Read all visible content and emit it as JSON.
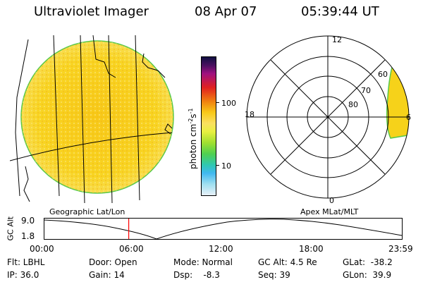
{
  "header": {
    "app_title": "Ultraviolet Imager",
    "date": "08 Apr 07",
    "time": "05:39:44 UT"
  },
  "left_panel": {
    "caption": "Geographic Lat/Lon"
  },
  "right_panel": {
    "caption": "Apex MLat/MLT",
    "mlt_labels": {
      "top": "12",
      "left": "18",
      "right": "6",
      "bottom": "0"
    },
    "lat_labels": [
      "60",
      "70",
      "80"
    ]
  },
  "colorbar": {
    "unit_prefix": "photon cm",
    "unit_exp1": "-2",
    "unit_mid": "s",
    "unit_exp2": "-1",
    "tick_labels": [
      "100",
      "10"
    ]
  },
  "timeline": {
    "ylabel": "GC Alt",
    "ytick_labels": [
      "9.0",
      "1.8"
    ],
    "xtick_labels": [
      "00:00",
      "06:00",
      "12:00",
      "18:00",
      "23:59"
    ],
    "current_time_fraction": 0.2359,
    "marker_color": "#ff0000"
  },
  "info": {
    "flt": "Flt: LBHL",
    "ip": "IP: 36.0",
    "door": "Door: Open",
    "gain": "Gain: 14",
    "mode": "Mode: Normal",
    "dsp": "Dsp:    -8.3",
    "gcalt": "GC Alt: 4.5 Re",
    "seq": "Seq: 39",
    "glat": "GLat:  -38.2",
    "glon": "GLon:  39.9"
  },
  "colors": {
    "disk_fill": "#f6d21a",
    "disk_edge": "#56c84a",
    "grid": "#000000"
  }
}
